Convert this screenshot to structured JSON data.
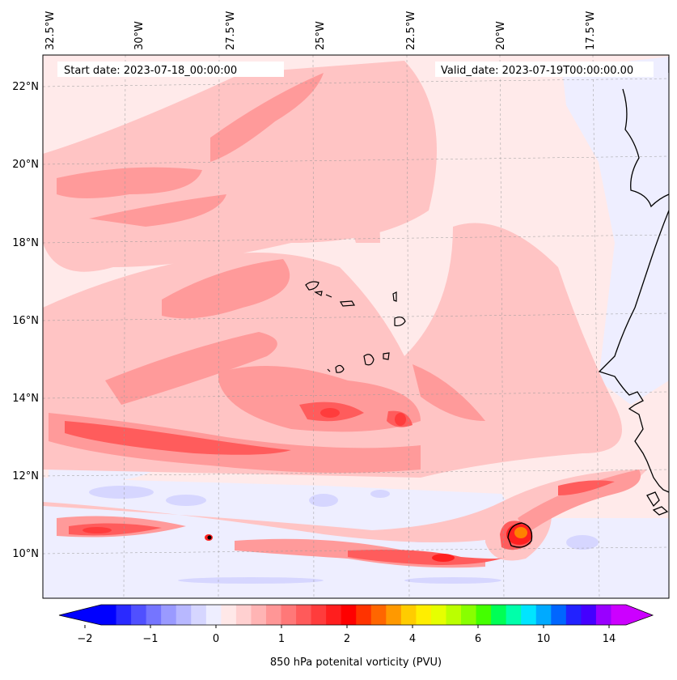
{
  "map": {
    "start_label": "Start date: 2023-07-18_00:00:00",
    "valid_label": "Valid_date: 2023-07-19T00:00:00.00",
    "lon_labels": [
      "32.5°W",
      "30°W",
      "27.5°W",
      "25°W",
      "22.5°W",
      "20°W",
      "17.5°W"
    ],
    "lat_labels": [
      "22°N",
      "20°N",
      "18°N",
      "16°N",
      "14°N",
      "12°N",
      "10°N"
    ]
  },
  "colorbar": {
    "label": "850 hPa potenital vorticity (PVU)",
    "tick_labels": [
      "−2",
      "−1",
      "0",
      "1",
      "2",
      "4",
      "6",
      "10",
      "14"
    ],
    "colors": [
      "#0000ff",
      "#2a2aff",
      "#5050ff",
      "#7575ff",
      "#9a9aff",
      "#b8b8ff",
      "#d6d6ff",
      "#eeeeff",
      "#ffe8e8",
      "#ffd0d0",
      "#ffb4b4",
      "#ff9696",
      "#ff7878",
      "#ff5a5a",
      "#ff3c3c",
      "#ff1e1e",
      "#ff0000",
      "#ff3300",
      "#ff6600",
      "#ff9900",
      "#ffcc00",
      "#ffee00",
      "#e6ff00",
      "#bbff00",
      "#88ff00",
      "#44ff00",
      "#00ff55",
      "#00ffaa",
      "#00e5ff",
      "#00aaff",
      "#0066ff",
      "#2222ff",
      "#4400ff",
      "#9900ff",
      "#cc00ff"
    ],
    "min_color": "#0000ff",
    "max_color": "#cc00ff"
  },
  "colors": {
    "background": "#ffeaea",
    "light_red": "#ffc4c4",
    "mid_red": "#ff9a9a",
    "strong_red": "#ff5c5c",
    "intense_red": "#ff2020",
    "negative": "#d6d6ff",
    "coast": "#000000"
  }
}
